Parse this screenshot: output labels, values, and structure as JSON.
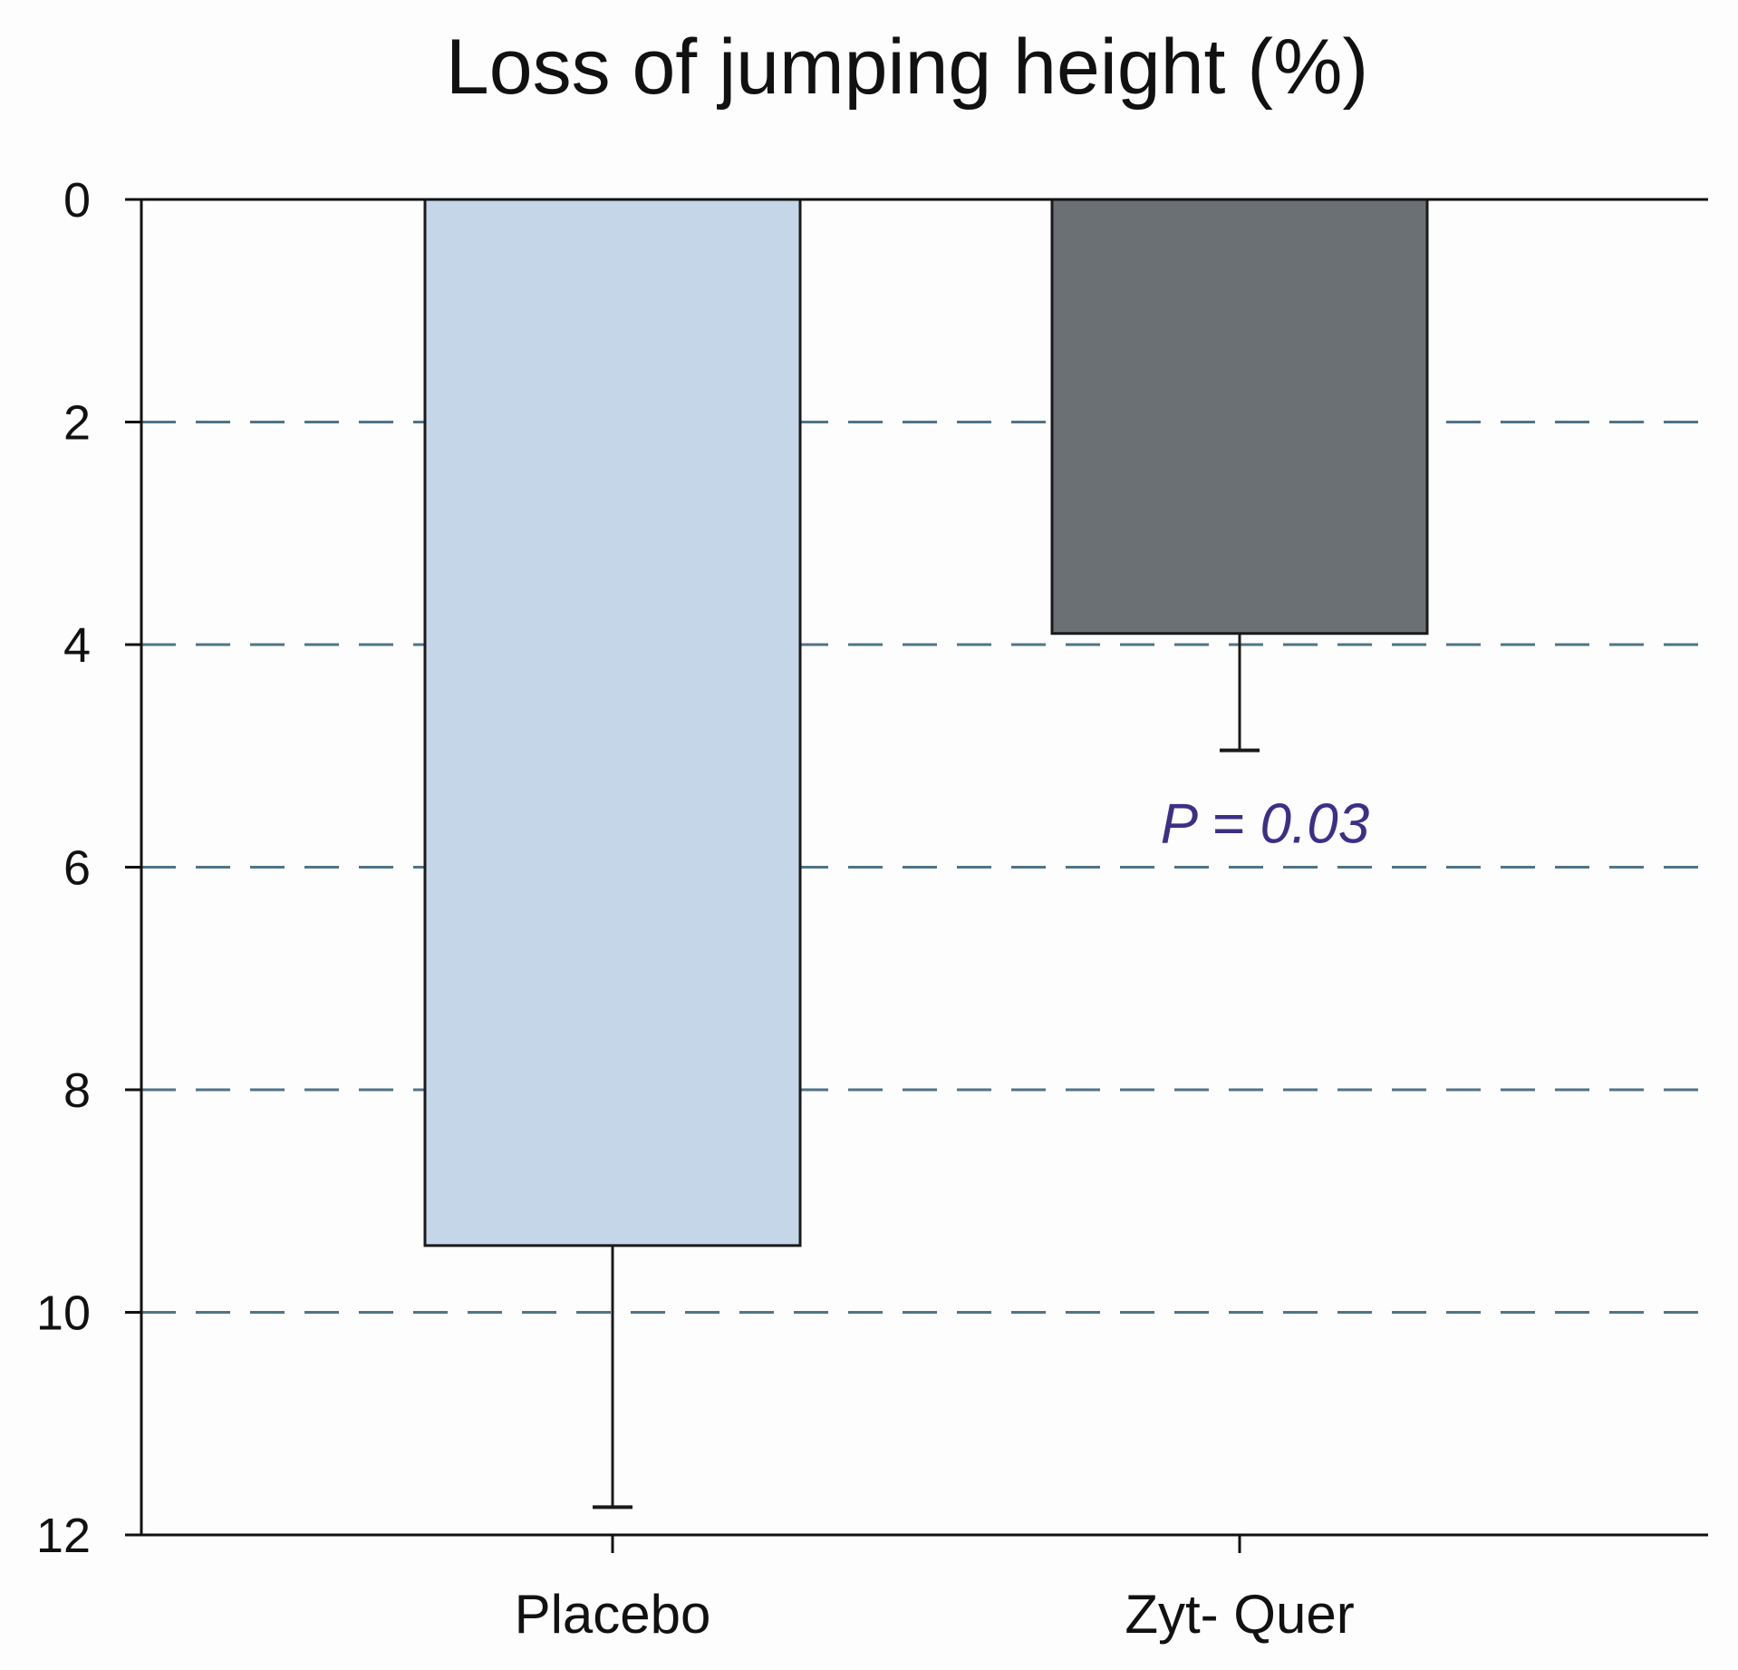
{
  "chart_data": {
    "type": "bar",
    "title": "Loss of jumping height (%)",
    "xlabel": "",
    "ylabel": "",
    "categories": [
      "Placebo",
      "Zyt- Quer"
    ],
    "values": [
      9.4,
      3.9
    ],
    "error": [
      2.35,
      1.05
    ],
    "ylim": [
      0,
      12
    ],
    "y_inverted": true,
    "yticks": [
      "0",
      "2",
      "4",
      "6",
      "8",
      "10",
      "12"
    ],
    "grid": "dashed horizontal",
    "bar_colors": [
      "#c5d6e8",
      "#6b7075"
    ],
    "grid_color": "#4f7488",
    "annotation": {
      "text": "P = 0.03",
      "category": "Zyt- Quer",
      "y": 5.6,
      "color": "#3d2f86"
    }
  }
}
